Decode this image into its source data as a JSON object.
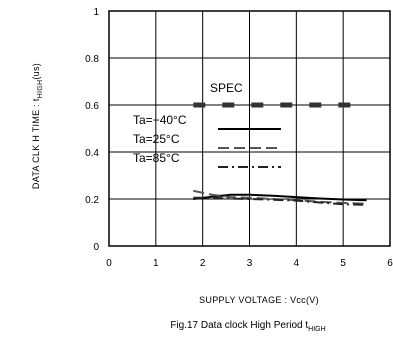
{
  "chart_data": {
    "type": "line",
    "xlabel": "SUPPLY VOLTAGE : Vcc(V)",
    "ylabel": {
      "main": "DATA CLK H TIME : t",
      "sub": "HIGH",
      "unit": "(us)"
    },
    "caption": {
      "main": "Fig.17  Data clock High Period t",
      "sub": "HIGH"
    },
    "xlim": [
      0,
      6
    ],
    "ylim": [
      0,
      1
    ],
    "x_ticks": [
      "0",
      "1",
      "2",
      "3",
      "4",
      "5",
      "6"
    ],
    "y_ticks": [
      "0",
      "0.2",
      "0.4",
      "0.6",
      "0.8",
      "1"
    ],
    "grid": true,
    "spec": {
      "label": "SPEC",
      "x": [
        1.8,
        5.5
      ],
      "y": 0.6
    },
    "legend_placement": "center-left",
    "series": [
      {
        "name": "Ta=−40°C",
        "style": "solid",
        "x": [
          1.8,
          2.2,
          2.6,
          3.0,
          3.5,
          4.0,
          4.5,
          5.0,
          5.5
        ],
        "y": [
          0.2,
          0.21,
          0.218,
          0.218,
          0.214,
          0.208,
          0.202,
          0.198,
          0.195
        ]
      },
      {
        "name": "Ta=25°C",
        "style": "dashed",
        "x": [
          1.8,
          2.2,
          2.6,
          3.0,
          3.5,
          4.0,
          4.5,
          5.0,
          5.5
        ],
        "y": [
          0.235,
          0.218,
          0.208,
          0.205,
          0.2,
          0.195,
          0.188,
          0.183,
          0.18
        ]
      },
      {
        "name": "Ta=85°C",
        "style": "dashdot",
        "x": [
          1.8,
          2.2,
          2.6,
          3.0,
          3.5,
          4.0,
          4.5,
          5.0,
          5.5
        ],
        "y": [
          0.205,
          0.205,
          0.202,
          0.2,
          0.197,
          0.193,
          0.185,
          0.178,
          0.175
        ]
      }
    ]
  }
}
